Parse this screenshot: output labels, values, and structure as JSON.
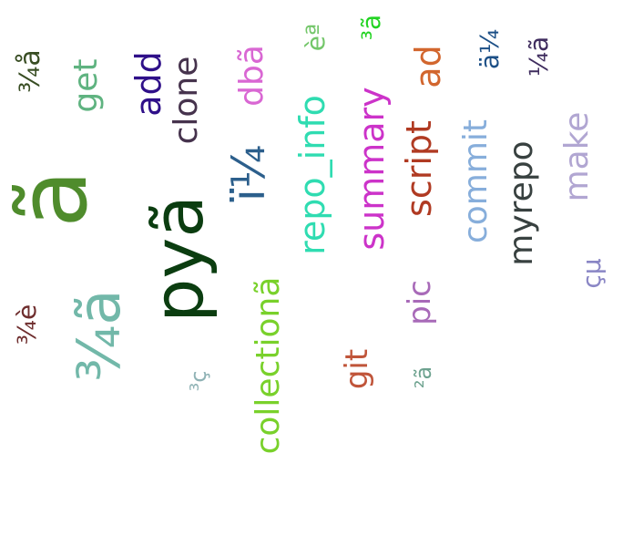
{
  "words": [
    {
      "text": "ã",
      "color": "#4f8c2c"
    },
    {
      "text": "pyã",
      "color": "#0b3d10"
    },
    {
      "text": "ï¼",
      "color": "#2c5f8c"
    },
    {
      "text": "¾ã",
      "color": "#72b8a9"
    },
    {
      "text": "repo_info",
      "color": "#2fdcb1"
    },
    {
      "text": "summary",
      "color": "#cc33c9"
    },
    {
      "text": "script",
      "color": "#b03a22"
    },
    {
      "text": "collectionã",
      "color": "#79d12b"
    },
    {
      "text": "commit",
      "color": "#87aedb"
    },
    {
      "text": "myrepo",
      "color": "#384140"
    },
    {
      "text": "clone",
      "color": "#46334d"
    },
    {
      "text": "add",
      "color": "#2f1089"
    },
    {
      "text": "dbã",
      "color": "#d967d3"
    },
    {
      "text": "get",
      "color": "#5fb380"
    },
    {
      "text": "make",
      "color": "#b1a6d2"
    },
    {
      "text": "git",
      "color": "#c0553a"
    },
    {
      "text": "pic",
      "color": "#a86ab8"
    },
    {
      "text": "ad",
      "color": "#d2662e"
    },
    {
      "text": "¾å",
      "color": "#384d23"
    },
    {
      "text": "¾è",
      "color": "#6e2d2d"
    },
    {
      "text": "èª",
      "color": "#73c669"
    },
    {
      "text": "³ã",
      "color": "#21d321"
    },
    {
      "text": "ä¼",
      "color": "#1c4f86"
    },
    {
      "text": "¼ã",
      "color": "#3f2c5e"
    },
    {
      "text": "çµ",
      "color": "#8a86c5"
    },
    {
      "text": "²ã",
      "color": "#6da28f"
    },
    {
      "text": "³ç",
      "color": "#8fb2b5"
    }
  ]
}
